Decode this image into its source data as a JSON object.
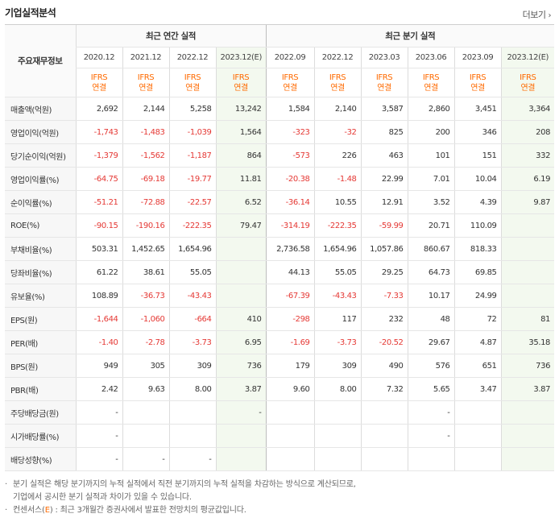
{
  "header": {
    "title": "기업실적분석",
    "more_label": "더보기"
  },
  "table": {
    "row_head": "주요재무정보",
    "groups": {
      "annual": "최근 연간 실적",
      "quarter": "최근 분기 실적"
    },
    "periods": [
      "2020.12",
      "2021.12",
      "2022.12",
      "2023.12(E)",
      "2022.09",
      "2022.12",
      "2023.03",
      "2023.06",
      "2023.09",
      "2023.12(E)"
    ],
    "basis_top": "IFRS",
    "basis_bottom": "연결",
    "rows": [
      {
        "label": "매출액(억원)",
        "values": [
          "2,692",
          "2,144",
          "5,258",
          "13,242",
          "1,584",
          "2,140",
          "3,587",
          "2,860",
          "3,451",
          "3,364"
        ]
      },
      {
        "label": "영업이익(억원)",
        "values": [
          "-1,743",
          "-1,483",
          "-1,039",
          "1,564",
          "-323",
          "-32",
          "825",
          "200",
          "346",
          "208"
        ]
      },
      {
        "label": "당기순이익(억원)",
        "values": [
          "-1,379",
          "-1,562",
          "-1,187",
          "864",
          "-573",
          "226",
          "463",
          "101",
          "151",
          "332"
        ]
      },
      {
        "label": "영업이익률(%)",
        "values": [
          "-64.75",
          "-69.18",
          "-19.77",
          "11.81",
          "-20.38",
          "-1.48",
          "22.99",
          "7.01",
          "10.04",
          "6.19"
        ]
      },
      {
        "label": "순이익률(%)",
        "values": [
          "-51.21",
          "-72.88",
          "-22.57",
          "6.52",
          "-36.14",
          "10.55",
          "12.91",
          "3.52",
          "4.39",
          "9.87"
        ]
      },
      {
        "label": "ROE(%)",
        "values": [
          "-90.15",
          "-190.16",
          "-222.35",
          "79.47",
          "-314.19",
          "-222.35",
          "-59.99",
          "20.71",
          "110.09",
          ""
        ]
      },
      {
        "label": "부채비율(%)",
        "values": [
          "503.31",
          "1,452.65",
          "1,654.96",
          "",
          "2,736.58",
          "1,654.96",
          "1,057.86",
          "860.67",
          "818.33",
          ""
        ]
      },
      {
        "label": "당좌비율(%)",
        "values": [
          "61.22",
          "38.61",
          "55.05",
          "",
          "44.13",
          "55.05",
          "29.25",
          "64.73",
          "69.85",
          ""
        ]
      },
      {
        "label": "유보율(%)",
        "values": [
          "108.89",
          "-36.73",
          "-43.43",
          "",
          "-67.39",
          "-43.43",
          "-7.33",
          "10.17",
          "24.99",
          ""
        ]
      },
      {
        "label": "EPS(원)",
        "values": [
          "-1,644",
          "-1,060",
          "-664",
          "410",
          "-298",
          "117",
          "232",
          "48",
          "72",
          "81"
        ]
      },
      {
        "label": "PER(배)",
        "values": [
          "-1.40",
          "-2.78",
          "-3.73",
          "6.95",
          "-1.69",
          "-3.73",
          "-20.52",
          "29.67",
          "4.87",
          "35.18"
        ]
      },
      {
        "label": "BPS(원)",
        "values": [
          "949",
          "305",
          "309",
          "736",
          "179",
          "309",
          "490",
          "576",
          "651",
          "736"
        ]
      },
      {
        "label": "PBR(배)",
        "values": [
          "2.42",
          "9.63",
          "8.00",
          "3.87",
          "9.60",
          "8.00",
          "7.32",
          "5.65",
          "3.47",
          "3.87"
        ]
      },
      {
        "label": "주당배당금(원)",
        "values": [
          "-",
          "",
          "",
          "-",
          "",
          "",
          "",
          "-",
          "",
          ""
        ]
      },
      {
        "label": "시가배당률(%)",
        "values": [
          "-",
          "",
          "",
          "",
          "",
          "",
          "",
          "-",
          "",
          ""
        ]
      },
      {
        "label": "배당성향(%)",
        "values": [
          "-",
          "-",
          "-",
          "",
          "",
          "",
          "",
          "",
          "",
          ""
        ]
      }
    ]
  },
  "notes": {
    "bullet": "·",
    "line1": "분기 실적은 해당 분기까지의 누적 실적에서 직전 분기까지의 누적 실적을 차감하는 방식으로 계산되므로,",
    "line2": "기업에서 공시한 분기 실적과 차이가 있을 수 있습니다.",
    "line3_prefix": "컨센서스(",
    "line3_e": "E",
    "line3_suffix": ") : 최근 3개월간 증권사에서 발표한 전망치의 평균값입니다."
  }
}
